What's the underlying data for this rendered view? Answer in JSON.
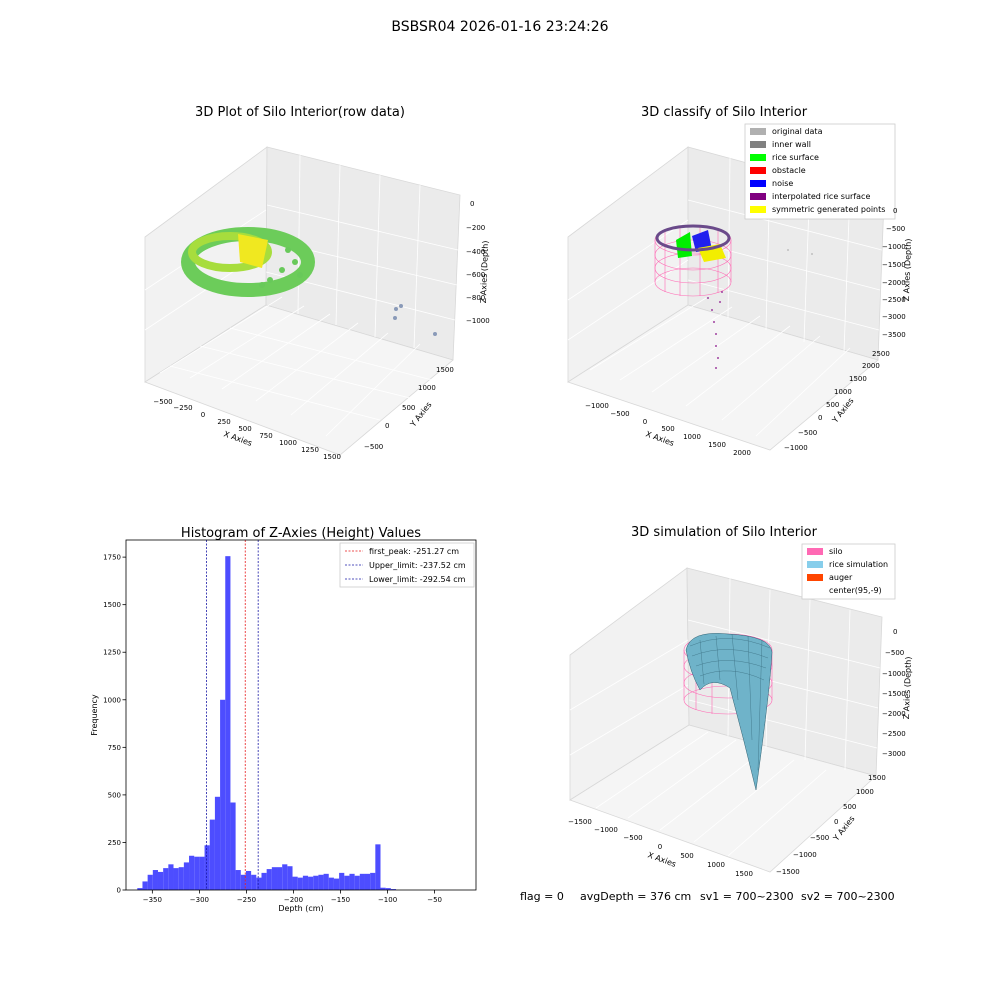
{
  "suptitle": "BSBSR04 2026-01-16 23:24:26",
  "footer": {
    "flag": "flag = 0",
    "avg": "avgDepth = 376 cm",
    "sv1": "sv1 = 700~2300",
    "sv2": "sv2 = 700~2300"
  },
  "colors": {
    "hist_bar": "#4d4dff",
    "first_peak": "#e8191a",
    "limits": "#1a1aa6",
    "silo": "#ff69b4",
    "rice": "#87ceeb",
    "auger": "#ff4500"
  },
  "chart_data": [
    {
      "type": "scatter",
      "title": "3D Plot of Silo Interior(row data)",
      "xlabel": "X Axies",
      "ylabel": "Y Axies",
      "zlabel": "Z Axies (Depth)",
      "xticks": [
        "−500",
        "−250",
        "0",
        "250",
        "500",
        "750",
        "1000",
        "1250",
        "1500"
      ],
      "yticks": [
        "−500",
        "0",
        "500",
        "1000",
        "1500"
      ],
      "zticks": [
        "0",
        "−200",
        "−400",
        "−600",
        "−800",
        "−1000"
      ],
      "grid": true
    },
    {
      "type": "scatter",
      "title": "3D classify of Silo Interior",
      "xlabel": "X Axies",
      "ylabel": "Y Axies",
      "zlabel": "Z Axies (Depth)",
      "xticks": [
        "−1000",
        "−500",
        "0",
        "500",
        "1000",
        "1500",
        "2000"
      ],
      "yticks": [
        "−1000",
        "−500",
        "0",
        "500",
        "1000",
        "1500",
        "2000",
        "2500"
      ],
      "zticks": [
        "0",
        "−500",
        "−1000",
        "−1500",
        "−2000",
        "−2500",
        "−3000",
        "−3500"
      ],
      "legend_position": "top-right",
      "legend": [
        {
          "label": "original data",
          "color": "#b0b0b0"
        },
        {
          "label": "inner wall",
          "color": "#808080"
        },
        {
          "label": "rice surface",
          "color": "#00ff00"
        },
        {
          "label": "obstacle",
          "color": "#ff0000"
        },
        {
          "label": "noise",
          "color": "#0000ff"
        },
        {
          "label": "interpolated rice surface",
          "color": "#800080"
        },
        {
          "label": "symmetric generated points",
          "color": "#ffff00"
        }
      ],
      "grid": true
    },
    {
      "type": "bar",
      "title": "Histogram of Z-Axies (Height) Values",
      "xlabel": "Depth (cm)",
      "ylabel": "Frequency",
      "xlim": [
        -378,
        -6
      ],
      "ylim": [
        0,
        1840
      ],
      "xticks": [
        -350,
        -300,
        -250,
        -200,
        -150,
        -100,
        -50
      ],
      "xtick_labels": [
        "−350",
        "−300",
        "−250",
        "−200",
        "−150",
        "−100",
        "−50"
      ],
      "yticks": [
        0,
        250,
        500,
        750,
        1000,
        1250,
        1500,
        1750
      ],
      "bin_edges_start": -366,
      "bin_width": 5.5,
      "values": [
        10,
        45,
        80,
        105,
        95,
        115,
        135,
        115,
        120,
        145,
        180,
        175,
        175,
        235,
        370,
        490,
        1000,
        1755,
        460,
        105,
        80,
        100,
        80,
        65,
        90,
        110,
        120,
        120,
        135,
        125,
        70,
        65,
        75,
        70,
        75,
        80,
        85,
        65,
        60,
        90,
        75,
        85,
        75,
        85,
        85,
        90,
        240,
        12,
        10,
        5
      ],
      "vlines": [
        {
          "label": "first_peak: -251.27 cm",
          "x": -251.27,
          "color": "#e8191a"
        },
        {
          "label": "Upper_limit: -237.52 cm",
          "x": -237.52,
          "color": "#1a1aa6"
        },
        {
          "label": "Lower_limit: -292.54 cm",
          "x": -292.54,
          "color": "#1a1aa6"
        }
      ],
      "legend_position": "top-right"
    },
    {
      "type": "surface",
      "title": "3D simulation of Silo Interior",
      "xlabel": "X Axies",
      "ylabel": "Y Axies",
      "zlabel": "Z Axies (Depth)",
      "xticks": [
        "−1500",
        "−1000",
        "−500",
        "0",
        "500",
        "1000",
        "1500"
      ],
      "yticks": [
        "−1500",
        "−1000",
        "−500",
        "0",
        "500",
        "1000",
        "1500"
      ],
      "zticks": [
        "0",
        "−500",
        "−1000",
        "−1500",
        "−2000",
        "−2500",
        "−3000"
      ],
      "legend_position": "top-right",
      "legend": [
        {
          "label": "silo",
          "color": "#ff69b4"
        },
        {
          "label": "rice simulation",
          "color": "#87ceeb"
        },
        {
          "label": "auger",
          "color": "#ff4500"
        },
        {
          "label": "center(95,-9)",
          "color": ""
        }
      ],
      "grid": true
    }
  ]
}
